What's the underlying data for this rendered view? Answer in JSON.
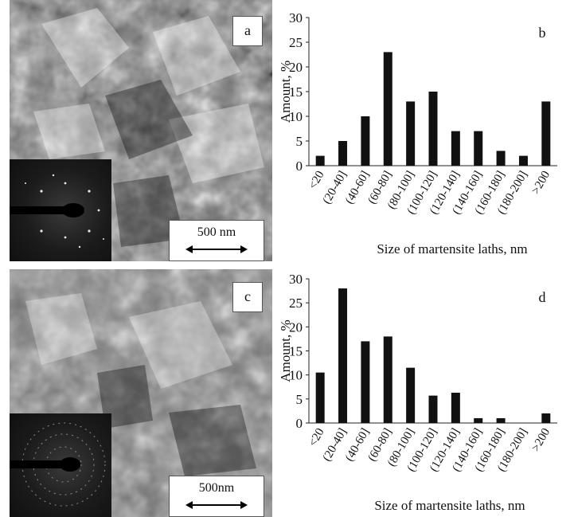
{
  "panels": {
    "a": {
      "label": "a",
      "scale_bar": "500 nm"
    },
    "c": {
      "label": "c",
      "scale_bar": "500nm"
    }
  },
  "chart_data": [
    {
      "type": "bar",
      "panel_label": "b",
      "categories": [
        "<20",
        "(20-40]",
        "(40-60]",
        "(60-80]",
        "(80-100]",
        "(100-120]",
        "(120-140]",
        "(140-160]",
        "(160-180]",
        "(180-200]",
        ">200"
      ],
      "values": [
        2,
        5,
        10,
        23,
        13,
        15,
        7,
        7,
        3,
        2,
        13
      ],
      "xlabel": "Size of martensite laths,  nm",
      "ylabel": "Amount,  %",
      "ylim": [
        0,
        30
      ],
      "yticks": [
        0,
        5,
        10,
        15,
        20,
        25,
        30
      ],
      "grid": false,
      "bar_color": "#111111"
    },
    {
      "type": "bar",
      "panel_label": "d",
      "categories": [
        "<20",
        "(20-40]",
        "(40-60]",
        "(60-80]",
        "(80-100]",
        "(100-120]",
        "(120-140]",
        "(140-160]",
        "(160-180]",
        "(180-200]",
        ">200"
      ],
      "values": [
        10.5,
        28,
        17,
        18,
        11.5,
        5.7,
        6.3,
        1,
        1,
        0,
        2
      ],
      "xlabel": "Size of martensite laths, nm",
      "ylabel": "Amount,  %",
      "ylim": [
        0,
        30
      ],
      "yticks": [
        0,
        5,
        10,
        15,
        20,
        25,
        30
      ],
      "grid": false,
      "bar_color": "#111111"
    }
  ]
}
